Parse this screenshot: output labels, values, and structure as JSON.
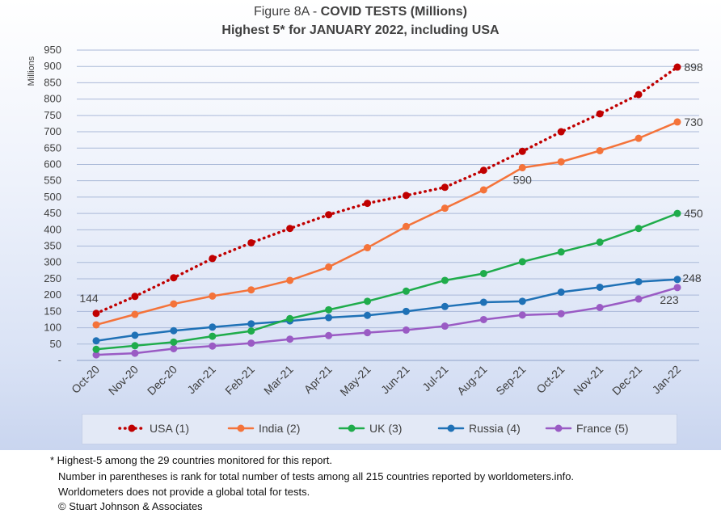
{
  "chart_data": {
    "type": "line",
    "title_prefix": "Figure 8A - ",
    "title_main": "COVID TESTS (Millions)",
    "subtitle": "Highest 5* for JANUARY 2022, including USA",
    "ylabel": "Millions",
    "ylim": [
      0,
      950
    ],
    "y_step": 50,
    "y_zero_label": "-",
    "grid": true,
    "legend_position": "bottom",
    "categories": [
      "Oct-20",
      "Nov-20",
      "Dec-20",
      "Jan-21",
      "Feb-21",
      "Mar-21",
      "Apr-21",
      "May-21",
      "Jun-21",
      "Jul-21",
      "Aug-21",
      "Sep-21",
      "Oct-21",
      "Nov-21",
      "Dec-21",
      "Jan-22"
    ],
    "series": [
      {
        "name": "USA (1)",
        "color": "#c00000",
        "dotted": true,
        "values": [
          144,
          196,
          253,
          312,
          360,
          404,
          446,
          481,
          505,
          530,
          582,
          640,
          700,
          755,
          814,
          898
        ]
      },
      {
        "name": "India (2)",
        "color": "#f4733a",
        "dotted": false,
        "values": [
          109,
          141,
          173,
          197,
          216,
          245,
          286,
          345,
          410,
          466,
          522,
          590,
          608,
          642,
          680,
          730
        ]
      },
      {
        "name": "UK (3)",
        "color": "#1fac4b",
        "dotted": false,
        "values": [
          34,
          45,
          56,
          74,
          90,
          128,
          155,
          181,
          212,
          245,
          266,
          302,
          332,
          362,
          404,
          450
        ]
      },
      {
        "name": "Russia (4)",
        "color": "#1f71b6",
        "dotted": false,
        "values": [
          60,
          77,
          91,
          102,
          112,
          121,
          131,
          138,
          150,
          165,
          178,
          181,
          209,
          224,
          241,
          248
        ]
      },
      {
        "name": "France (5)",
        "color": "#9a5bc4",
        "dotted": false,
        "values": [
          17,
          22,
          36,
          44,
          53,
          65,
          76,
          85,
          93,
          105,
          125,
          139,
          143,
          162,
          188,
          223
        ]
      }
    ],
    "data_labels": [
      {
        "series": 0,
        "point": 0,
        "text": "144"
      },
      {
        "series": 0,
        "point": 15,
        "text": "898"
      },
      {
        "series": 1,
        "point": 11,
        "text": "590"
      },
      {
        "series": 1,
        "point": 15,
        "text": "730"
      },
      {
        "series": 2,
        "point": 15,
        "text": "450"
      },
      {
        "series": 3,
        "point": 15,
        "text": "248"
      },
      {
        "series": 4,
        "point": 15,
        "text": "223"
      }
    ]
  },
  "footnotes": {
    "line1": "* Highest-5 among the 29 countries monitored for this report.",
    "line2": "Number in parentheses is rank for total number of tests among all 215  countries reported by worldometers.info.",
    "line3": "Worldometers does not provide a global total for tests.",
    "line4": "© Stuart Johnson & Associates"
  }
}
